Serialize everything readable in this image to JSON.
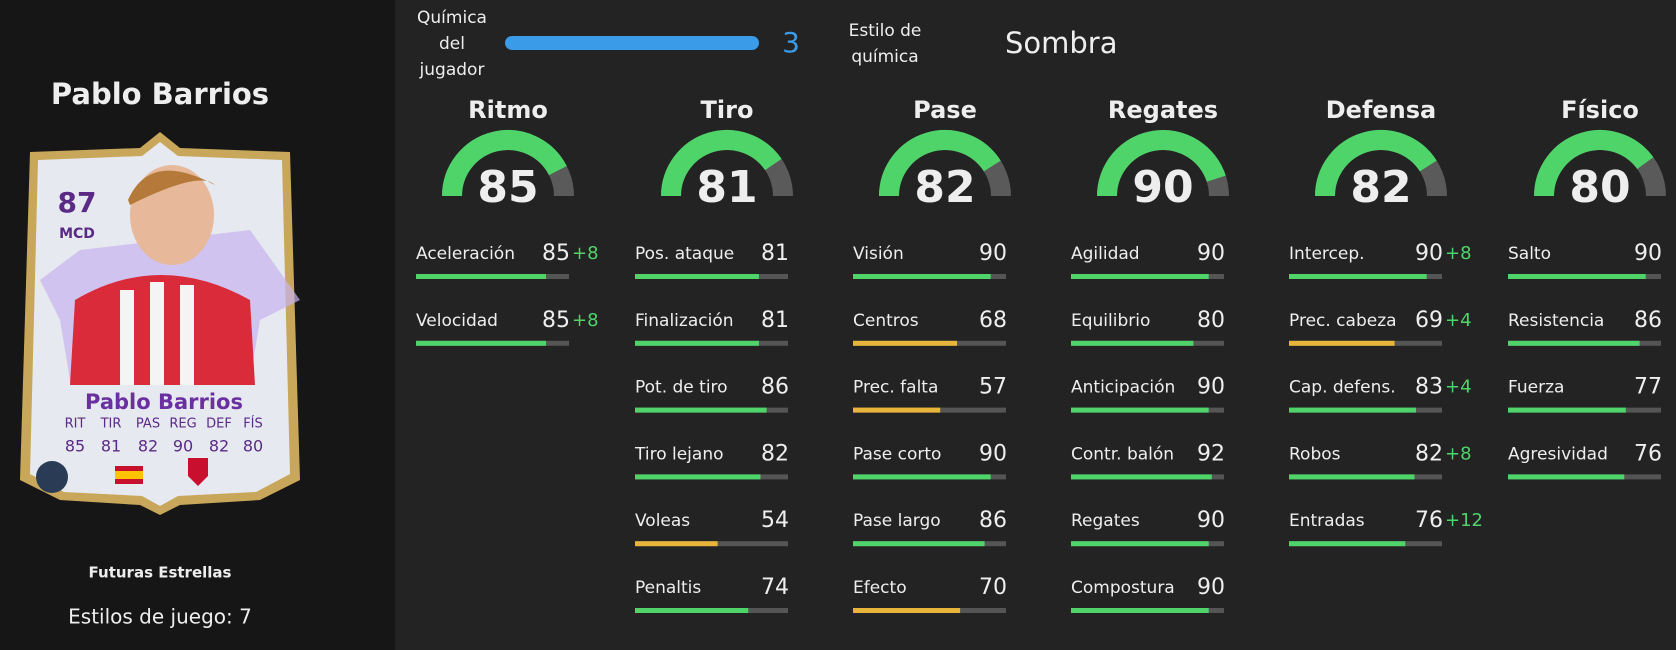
{
  "player": {
    "name": "Pablo Barrios",
    "card": {
      "rating": 87,
      "position": "MCD",
      "name": "Pablo Barrios",
      "stat_labels": [
        "RIT",
        "TIR",
        "PAS",
        "REG",
        "DEF",
        "FÍS"
      ],
      "stat_values": [
        85,
        81,
        82,
        90,
        82,
        80
      ]
    },
    "program": "Futuras Estrellas",
    "playstyles": "Estilos de juego: 7"
  },
  "chemistry": {
    "label": [
      "Química",
      "del",
      "jugador"
    ],
    "value": 3
  },
  "chemistry_style": {
    "label": [
      "Estilo de",
      "química"
    ],
    "value": "Sombra"
  },
  "categories": [
    {
      "name": "Ritmo",
      "value": 85,
      "stats": [
        {
          "name": "Aceleración",
          "value": 85,
          "boost": "+8"
        },
        {
          "name": "Velocidad",
          "value": 85,
          "boost": "+8"
        }
      ]
    },
    {
      "name": "Tiro",
      "value": 81,
      "stats": [
        {
          "name": "Pos. ataque",
          "value": 81
        },
        {
          "name": "Finalización",
          "value": 81
        },
        {
          "name": "Pot. de tiro",
          "value": 86
        },
        {
          "name": "Tiro lejano",
          "value": 82
        },
        {
          "name": "Voleas",
          "value": 54
        },
        {
          "name": "Penaltis",
          "value": 74
        }
      ]
    },
    {
      "name": "Pase",
      "value": 82,
      "stats": [
        {
          "name": "Visión",
          "value": 90
        },
        {
          "name": "Centros",
          "value": 68
        },
        {
          "name": "Prec. falta",
          "value": 57
        },
        {
          "name": "Pase corto",
          "value": 90
        },
        {
          "name": "Pase largo",
          "value": 86
        },
        {
          "name": "Efecto",
          "value": 70
        }
      ]
    },
    {
      "name": "Regates",
      "value": 90,
      "stats": [
        {
          "name": "Agilidad",
          "value": 90
        },
        {
          "name": "Equilibrio",
          "value": 80
        },
        {
          "name": "Anticipación",
          "value": 90
        },
        {
          "name": "Contr. balón",
          "value": 92
        },
        {
          "name": "Regates",
          "value": 90
        },
        {
          "name": "Compostura",
          "value": 90
        }
      ]
    },
    {
      "name": "Defensa",
      "value": 82,
      "stats": [
        {
          "name": "Intercep.",
          "value": 90,
          "boost": "+8"
        },
        {
          "name": "Prec. cabeza",
          "value": 69,
          "boost": "+4"
        },
        {
          "name": "Cap. defens.",
          "value": 83,
          "boost": "+4"
        },
        {
          "name": "Robos",
          "value": 82,
          "boost": "+8"
        },
        {
          "name": "Entradas",
          "value": 76,
          "boost": "+12"
        }
      ]
    },
    {
      "name": "Físico",
      "value": 80,
      "stats": [
        {
          "name": "Salto",
          "value": 90
        },
        {
          "name": "Resistencia",
          "value": 86
        },
        {
          "name": "Fuerza",
          "value": 77
        },
        {
          "name": "Agresividad",
          "value": 76
        }
      ]
    }
  ]
}
